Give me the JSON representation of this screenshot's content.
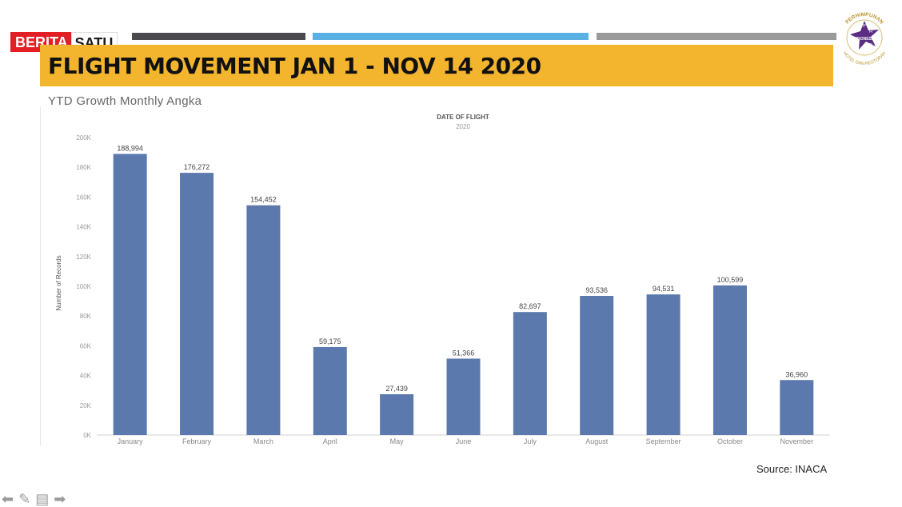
{
  "header": {
    "logo_part1": "BERITA",
    "logo_part2": "SATU",
    "title": "FLIGHT MOVEMENT JAN 1 - NOV 14 2020",
    "subtitle": "YTD Growth Monthly Angka",
    "seal_text_top": "PERHIMPUNAN",
    "seal_text_bottom": "HOTEL DAN RESTORAN",
    "seal_center": "INDONESIA",
    "seal_letters": [
      "P",
      "H",
      "R",
      "I"
    ]
  },
  "colors": {
    "accent_bar": "#f4b52e",
    "bar": "#5b79ac",
    "stripe_dark": "#4a4a4e",
    "stripe_blue": "#59b0e2",
    "stripe_gray": "#9a9a9a",
    "brand_red": "#e31e24"
  },
  "chart_data": {
    "type": "bar",
    "title": "DATE OF FLIGHT",
    "subtitle": "2020",
    "ylabel": "Number of Records",
    "xlabel": "",
    "categories": [
      "January",
      "February",
      "March",
      "April",
      "May",
      "June",
      "July",
      "August",
      "September",
      "October",
      "November"
    ],
    "values": [
      188994,
      176272,
      154452,
      59175,
      27439,
      51366,
      82697,
      93536,
      94531,
      100599,
      36960
    ],
    "value_labels": [
      "188,994",
      "176,272",
      "154,452",
      "59,175",
      "27,439",
      "51,366",
      "82,697",
      "93,536",
      "94,531",
      "100,599",
      "36,960"
    ],
    "ylim": [
      0,
      200000
    ],
    "yticks": [
      0,
      20000,
      40000,
      60000,
      80000,
      100000,
      120000,
      140000,
      160000,
      180000,
      200000
    ],
    "ytick_labels": [
      "0K",
      "20K",
      "40K",
      "60K",
      "80K",
      "100K",
      "120K",
      "140K",
      "160K",
      "180K",
      "200K"
    ],
    "grid": false,
    "legend": "none"
  },
  "footer": {
    "source": "Source: INACA"
  },
  "nav": {
    "icons": [
      "arrow-left-icon",
      "pen-icon",
      "slides-icon",
      "arrow-right-icon"
    ]
  }
}
